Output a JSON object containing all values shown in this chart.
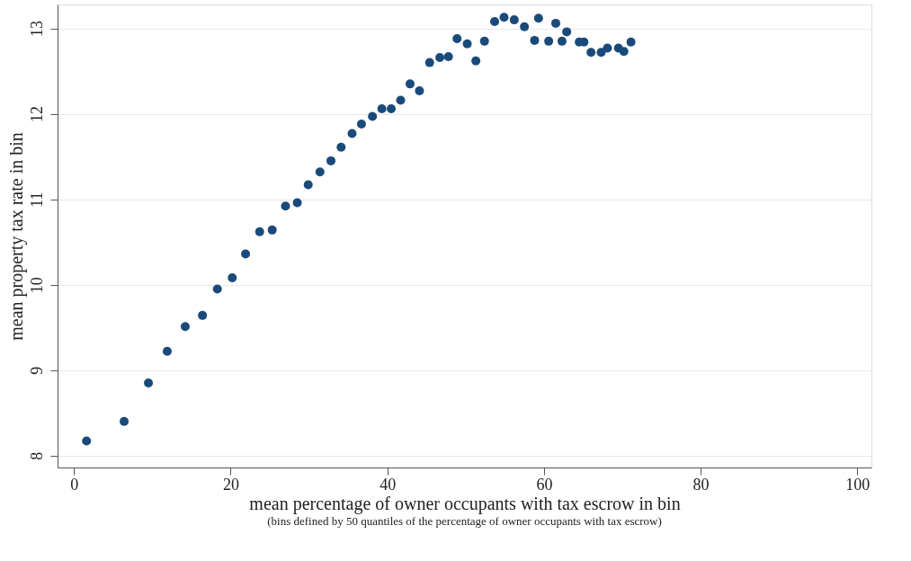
{
  "chart_data": {
    "type": "scatter",
    "xlabel": "mean percentage of owner occupants with tax escrow in bin",
    "ylabel": "mean property tax rate in bin",
    "annotations": [
      "(bins defined by 50 quantiles of the percentage of owner occupants  with tax escrow)"
    ],
    "xlim": [
      -2.1,
      101.8
    ],
    "ylim": [
      7.86,
      13.28
    ],
    "xticks": [
      0,
      20,
      40,
      60,
      80,
      100
    ],
    "yticks": [
      8,
      9,
      10,
      11,
      12,
      13
    ],
    "grid": "y",
    "marker": "circle",
    "x": [
      1.6,
      6.4,
      9.5,
      11.9,
      14.2,
      16.4,
      18.3,
      20.2,
      21.9,
      23.7,
      25.3,
      27.0,
      28.5,
      29.9,
      31.4,
      32.8,
      34.1,
      35.5,
      36.7,
      38.1,
      39.3,
      40.5,
      41.7,
      42.9,
      44.1,
      45.4,
      46.7,
      47.8,
      48.9,
      50.2,
      51.3,
      52.4,
      53.7,
      54.9,
      56.2,
      57.5,
      58.8,
      59.3,
      60.6,
      61.5,
      62.3,
      62.9,
      64.5,
      65.1,
      66.0,
      67.3,
      68.1,
      69.5,
      70.2,
      71.1
    ],
    "series": [
      {
        "color": "#1a4a7a",
        "values": [
          8.17,
          8.4,
          8.85,
          9.22,
          9.51,
          9.64,
          9.95,
          10.08,
          10.36,
          10.62,
          10.64,
          10.92,
          10.96,
          11.17,
          11.32,
          11.45,
          11.61,
          11.77,
          11.88,
          11.97,
          12.06,
          12.06,
          12.16,
          12.35,
          12.27,
          12.6,
          12.66,
          12.67,
          12.88,
          12.82,
          12.62,
          12.85,
          13.08,
          13.13,
          13.1,
          13.02,
          12.86,
          13.12,
          12.85,
          13.06,
          12.85,
          12.96,
          12.84,
          12.84,
          12.72,
          12.72,
          12.77,
          12.77,
          12.73,
          12.84
        ]
      }
    ]
  }
}
